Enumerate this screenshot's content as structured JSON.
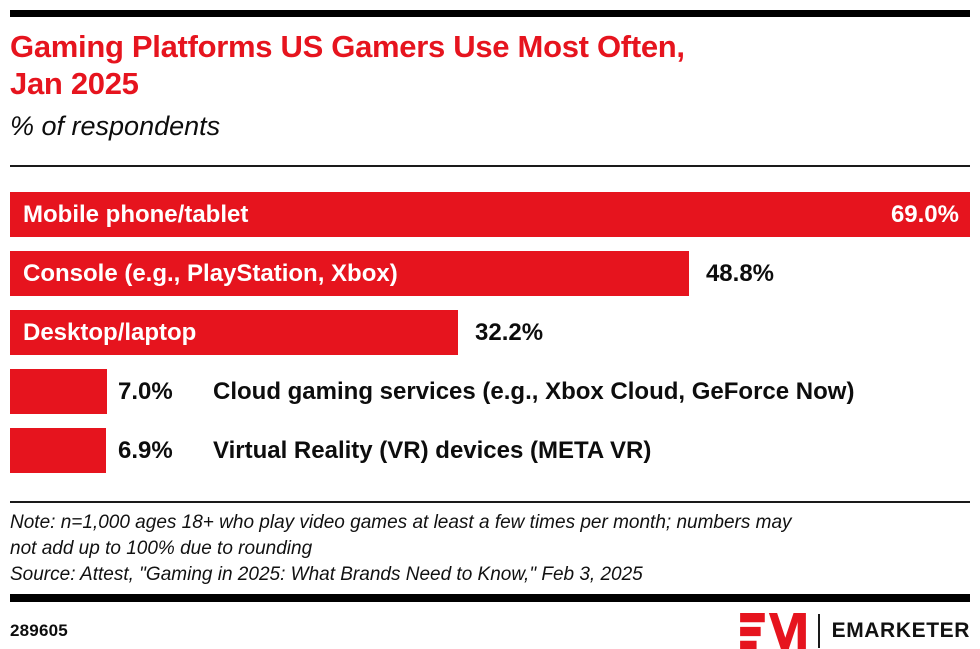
{
  "header": {
    "title_line1": "Gaming Platforms US Gamers Use Most Often,",
    "title_line2": "Jan 2025",
    "subtitle": "% of respondents"
  },
  "chart_data": {
    "type": "bar",
    "orientation": "horizontal",
    "title": "Gaming Platforms US Gamers Use Most Often, Jan 2025",
    "xlabel": "% of respondents",
    "ylabel": "",
    "xlim": [
      0,
      69
    ],
    "grid": false,
    "legend": "none",
    "bar_color": "#e6141e",
    "categories": [
      "Mobile phone/tablet",
      "Console (e.g., PlayStation, Xbox)",
      "Desktop/laptop",
      "Cloud gaming services (e.g., Xbox Cloud, GeForce Now)",
      "Virtual Reality (VR) devices (META VR)"
    ],
    "values": [
      69.0,
      48.8,
      32.2,
      7.0,
      6.9
    ],
    "rows": [
      {
        "label": "Mobile phone/tablet",
        "value": 69.0,
        "display": "69.0%",
        "label_placement": "inside",
        "value_placement": "inside"
      },
      {
        "label": "Console (e.g., PlayStation, Xbox)",
        "value": 48.8,
        "display": "48.8%",
        "label_placement": "inside",
        "value_placement": "after-bar"
      },
      {
        "label": "Desktop/laptop",
        "value": 32.2,
        "display": "32.2%",
        "label_placement": "inside",
        "value_placement": "after-bar"
      },
      {
        "label": "Cloud gaming services (e.g., Xbox Cloud, GeForce Now)",
        "value": 7.0,
        "display": "7.0%",
        "label_placement": "outside",
        "value_placement": "outside"
      },
      {
        "label": "Virtual Reality (VR) devices (META VR)",
        "value": 6.9,
        "display": "6.9%",
        "label_placement": "outside",
        "value_placement": "outside"
      }
    ]
  },
  "footnote": {
    "note_line1": "Note: n=1,000 ages 18+ who play video games at least a few times per month; numbers may",
    "note_line2": "not add up to 100% due to rounding",
    "source": "Source: Attest, \"Gaming in 2025: What Brands Need to Know,\" Feb 3, 2025"
  },
  "footer": {
    "chart_id": "289605",
    "brand": "EMARKETER"
  },
  "colors": {
    "accent_red": "#e6141e",
    "text_black": "#0d0d0d"
  }
}
